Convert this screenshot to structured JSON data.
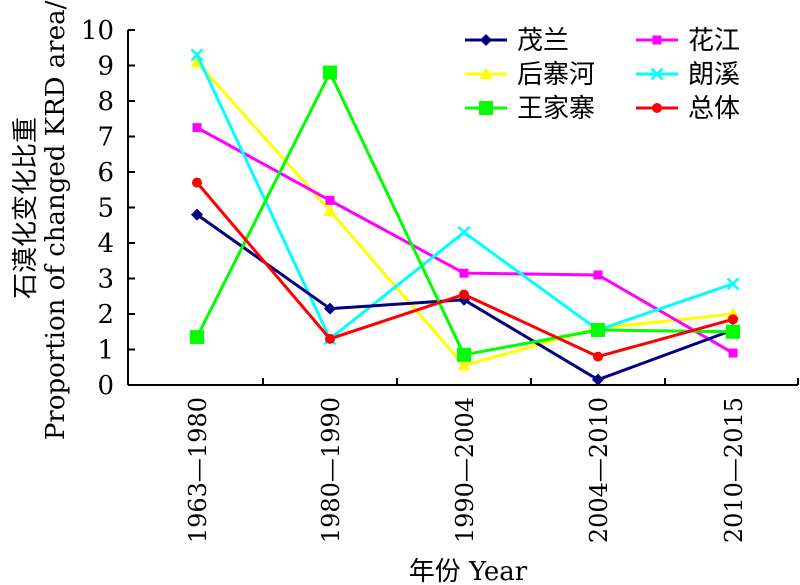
{
  "chart_data": {
    "type": "line",
    "categories": [
      "1963—1980",
      "1980—1990",
      "1990—2004",
      "2004—2010",
      "2010—2015"
    ],
    "ylabel_cn": "石漠化变化比重",
    "ylabel_en": "Proportion of changed KRD area/%",
    "xlabel": "年份 Year",
    "ylim": [
      0,
      10
    ],
    "yticks": [
      0,
      1,
      2,
      3,
      4,
      5,
      6,
      7,
      8,
      9,
      10
    ],
    "grid": false,
    "legend_position": "top-right",
    "series": [
      {
        "name": "茂兰",
        "values": [
          4.8,
          2.15,
          2.4,
          0.15,
          1.55
        ],
        "color": "#000080",
        "marker": "diamond"
      },
      {
        "name": "花江",
        "values": [
          7.25,
          5.2,
          3.15,
          3.1,
          0.9
        ],
        "color": "#ff00ff",
        "marker": "square-small"
      },
      {
        "name": "后寨河",
        "values": [
          9.1,
          4.9,
          0.55,
          1.6,
          2.0
        ],
        "color": "#ffff00",
        "marker": "triangle"
      },
      {
        "name": "朗溪",
        "values": [
          9.3,
          1.3,
          4.3,
          1.55,
          2.85
        ],
        "color": "#00ffff",
        "marker": "x"
      },
      {
        "name": "王家寨",
        "values": [
          1.35,
          8.8,
          0.85,
          1.55,
          1.5
        ],
        "color": "#00ff00",
        "marker": "square-large"
      },
      {
        "name": "总体",
        "values": [
          5.7,
          1.3,
          2.55,
          0.8,
          1.85
        ],
        "color": "#ff0000",
        "marker": "circle"
      }
    ]
  }
}
